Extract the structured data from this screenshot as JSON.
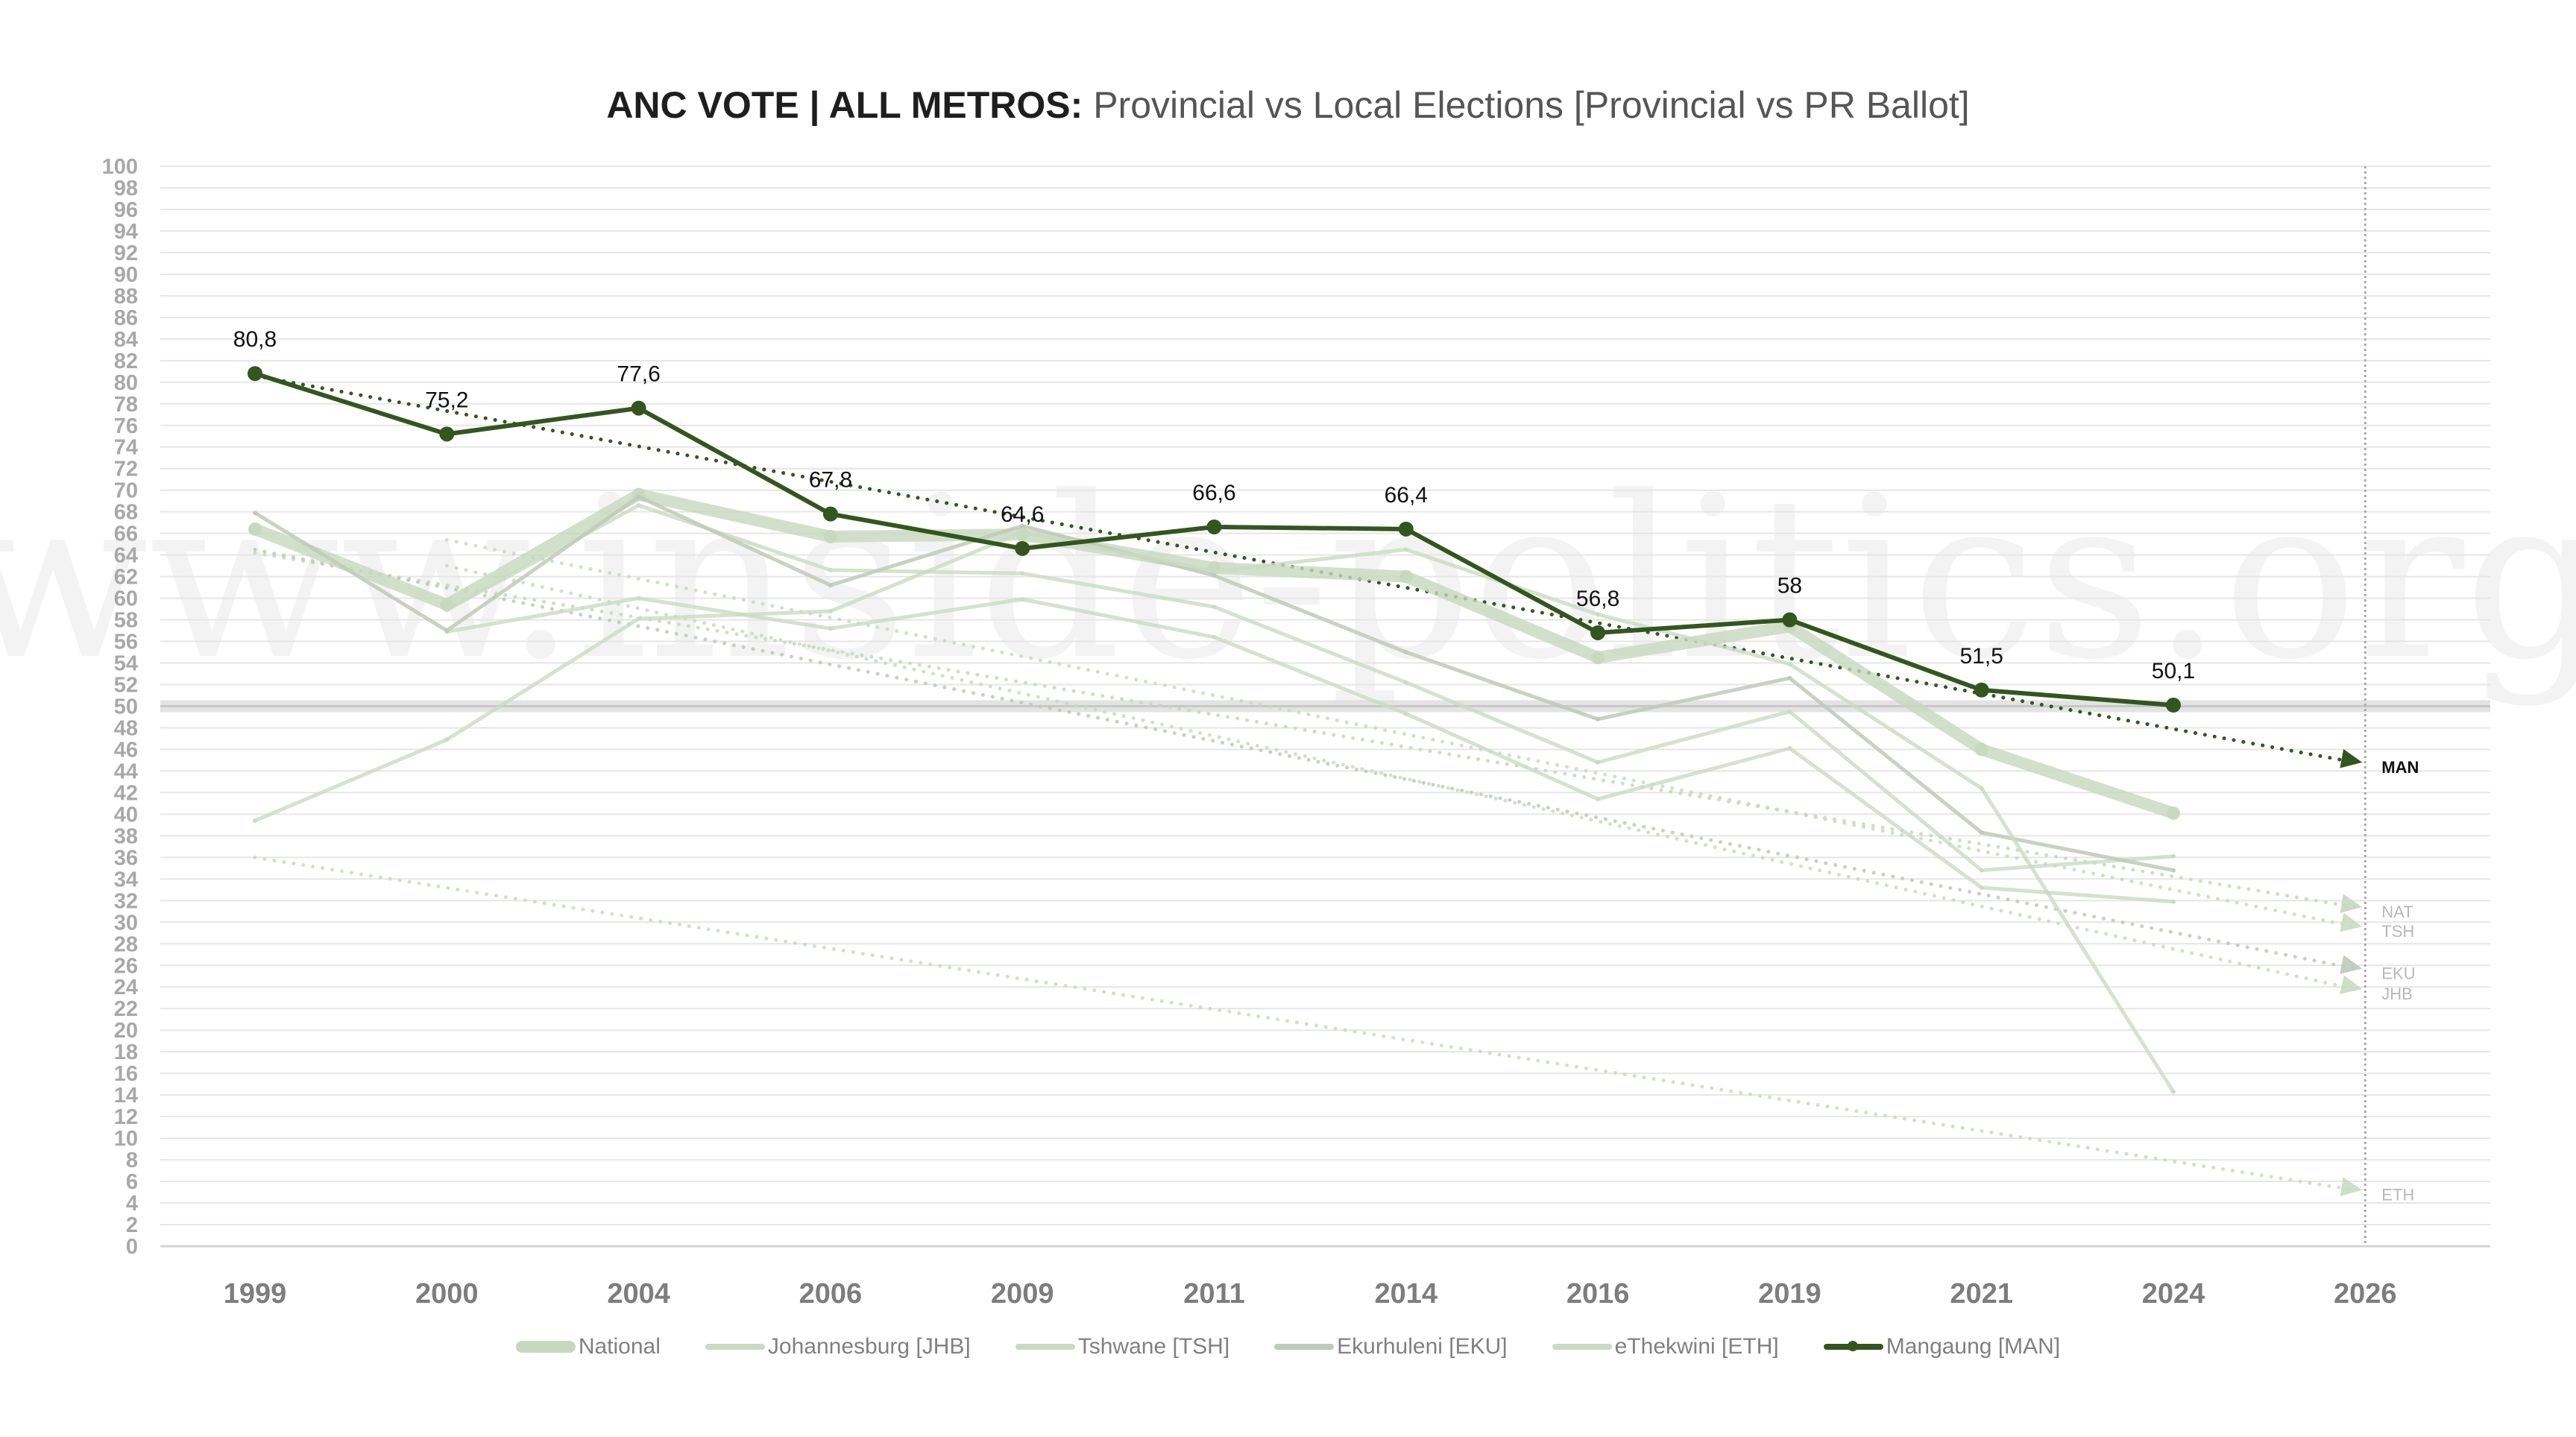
{
  "title": {
    "bold": "ANC VOTE | ALL METROS:",
    "rest": " Provincial vs Local Elections [Provincial vs PR Ballot]"
  },
  "watermark": "www.inside-politics.org",
  "colors": {
    "national": "#c7d8be",
    "jhb": "#c9dbc2",
    "tsh": "#c9dbc2",
    "eku": "#bfc9b9",
    "eth": "#c9dbc2",
    "man": "#33561f",
    "grid": "#e6e6e6",
    "fifty_band": "#dcdcdc",
    "proj_label": "#b8b8b8"
  },
  "legend": [
    {
      "key": "national",
      "label": "National"
    },
    {
      "key": "jhb",
      "label": "Johannesburg [JHB]"
    },
    {
      "key": "tsh",
      "label": "Tshwane [TSH]"
    },
    {
      "key": "eku",
      "label": "Ekurhuleni [EKU]"
    },
    {
      "key": "eth",
      "label": "eThekwini [ETH]"
    },
    {
      "key": "man",
      "label": "Mangaung [MAN]"
    }
  ],
  "chart_data": {
    "type": "line",
    "title": "ANC VOTE | ALL METROS: Provincial vs Local Elections [Provincial vs PR Ballot]",
    "xlabel": "",
    "ylabel": "",
    "categories": [
      "1999",
      "2000",
      "2004",
      "2006",
      "2009",
      "2011",
      "2014",
      "2016",
      "2019",
      "2021",
      "2024",
      "2026"
    ],
    "y_ticks": [
      0,
      2,
      4,
      6,
      8,
      10,
      12,
      14,
      16,
      18,
      20,
      22,
      24,
      26,
      28,
      30,
      32,
      34,
      36,
      38,
      40,
      42,
      44,
      46,
      48,
      50,
      52,
      54,
      56,
      58,
      60,
      62,
      64,
      66,
      68,
      70,
      72,
      74,
      76,
      78,
      80,
      82,
      84,
      86,
      88,
      90,
      92,
      94,
      96,
      98,
      100
    ],
    "ylim": [
      0,
      100
    ],
    "grid": true,
    "reference_line": 50,
    "legend_position": "bottom",
    "series": [
      {
        "key": "national",
        "name": "National",
        "short": "NAT",
        "style": "thick",
        "values": [
          66.4,
          59.4,
          69.6,
          65.7,
          65.9,
          62.8,
          62.0,
          54.5,
          57.4,
          46.0,
          40.1,
          null
        ],
        "trend_start": 64.2,
        "projection_2026": 31.4
      },
      {
        "key": "jhb",
        "name": "Johannesburg [JHB]",
        "short": "JHB",
        "style": "thin",
        "values": [
          null,
          56.9,
          60.0,
          57.2,
          59.9,
          56.4,
          49.3,
          41.4,
          46.1,
          33.2,
          31.9,
          null
        ],
        "trend_start": 63.0,
        "projection_2026": 23.8
      },
      {
        "key": "tsh",
        "name": "Tshwane [TSH]",
        "short": "TSH",
        "style": "thin",
        "values": [
          null,
          58.9,
          68.6,
          62.6,
          62.3,
          59.2,
          52.2,
          44.8,
          49.5,
          34.8,
          36.1,
          null
        ],
        "trend_start": 65.4,
        "projection_2026": 29.6
      },
      {
        "key": "eku",
        "name": "Ekurhuleni [EKU]",
        "short": "EKU",
        "style": "thin",
        "values": [
          67.9,
          57.0,
          69.4,
          61.2,
          66.7,
          62.1,
          55.0,
          48.8,
          52.6,
          38.3,
          34.8,
          null
        ],
        "trend_start": 64.5,
        "projection_2026": 25.7
      },
      {
        "key": "eth",
        "name": "eThekwini [ETH]",
        "short": "ETH",
        "style": "thin",
        "values": [
          39.4,
          46.9,
          58.1,
          58.8,
          66.1,
          62.5,
          64.5,
          58.5,
          53.9,
          42.4,
          14.3,
          null
        ],
        "trend_start": 36.0,
        "projection_2026": 5.2
      },
      {
        "key": "man",
        "name": "Mangaung [MAN]",
        "short": "MAN",
        "style": "marker",
        "values": [
          80.8,
          75.2,
          77.6,
          67.8,
          64.6,
          66.6,
          66.4,
          56.8,
          58.0,
          51.5,
          50.1,
          null
        ],
        "data_labels": [
          "80,8",
          "75,2",
          "77,6",
          "67,8",
          "64,6",
          "66,6",
          "66,4",
          "56,8",
          "58",
          "51,5",
          "50,1",
          ""
        ],
        "trend_start": 80.6,
        "projection_2026": 44.8
      }
    ]
  }
}
